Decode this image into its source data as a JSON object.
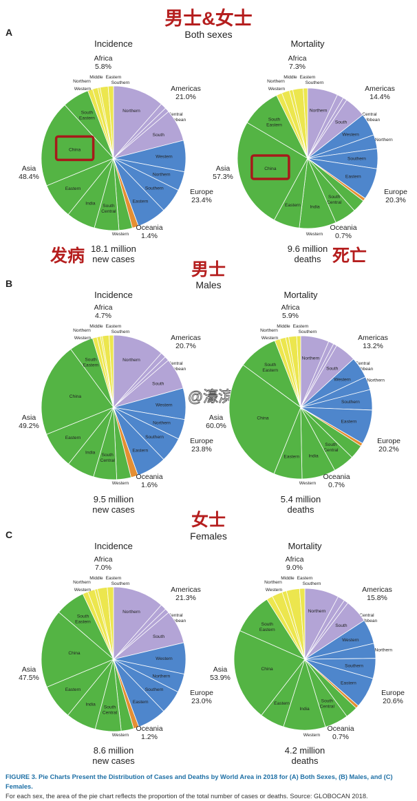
{
  "colors": {
    "africa": "#ece64e",
    "americas": "#b3a4d6",
    "europe": "#4e86cc",
    "oceania": "#e58f33",
    "asia": "#54b444",
    "heading_red": "#b51e1e",
    "china_box": "#a61a1a",
    "caption_blue": "#1d6fa5"
  },
  "headings": {
    "both": "男士&女士",
    "males": "男士",
    "females": "女士",
    "onset": "发病",
    "death": "死亡",
    "watermark": "@濠滨"
  },
  "caption": {
    "line1": "FIGURE 3. Pie Charts Present the Distribution of Cases and Deaths by World Area in 2018 for (A) Both Sexes, (B) Males, and (C) Females.",
    "line2": "For each sex, the area of the pie chart reflects the proportion of the total number of cases or deaths. Source: GLOBOCAN 2018."
  },
  "chart_data": [
    {
      "type": "pie",
      "panel": "A",
      "group": "Both sexes",
      "title": "Incidence",
      "total": "18.1 million",
      "total_unit": "new cases",
      "regions": [
        {
          "name": "Americas",
          "value": 21.0,
          "label": "21.0%"
        },
        {
          "name": "Europe",
          "value": 23.4,
          "label": "23.4%"
        },
        {
          "name": "Oceania",
          "value": 1.4,
          "label": "1.4%"
        },
        {
          "name": "Asia",
          "value": 48.4,
          "label": "48.4%"
        },
        {
          "name": "Africa",
          "value": 5.8,
          "label": "5.8%"
        }
      ],
      "subregions": [
        {
          "name": "Northern",
          "region": "Americas",
          "value": 11.5
        },
        {
          "name": "Central",
          "region": "Americas",
          "value": 1.3
        },
        {
          "name": "Caribbean",
          "region": "Americas",
          "value": 1.0
        },
        {
          "name": "South",
          "region": "Americas",
          "value": 7.2
        },
        {
          "name": "Western",
          "region": "Europe",
          "value": 7.0
        },
        {
          "name": "Northern",
          "region": "Europe",
          "value": 4.3
        },
        {
          "name": "Southern",
          "region": "Europe",
          "value": 5.5
        },
        {
          "name": "Eastern",
          "region": "Europe",
          "value": 6.6
        },
        {
          "name": "Oceania",
          "region": "Oceania",
          "value": 1.4
        },
        {
          "name": "Western",
          "region": "Asia",
          "value": 3.0
        },
        {
          "name": "South Central",
          "region": "Asia",
          "value": 5.5
        },
        {
          "name": "India",
          "region": "Asia",
          "value": 6.5
        },
        {
          "name": "Eastern",
          "region": "Asia",
          "value": 8.0
        },
        {
          "name": "China",
          "region": "Asia",
          "value": 19.4
        },
        {
          "name": "South Eastern",
          "region": "Asia",
          "value": 6.0
        },
        {
          "name": "Northern",
          "region": "Africa",
          "value": 1.1
        },
        {
          "name": "Western",
          "region": "Africa",
          "value": 1.2
        },
        {
          "name": "Middle",
          "region": "Africa",
          "value": 0.5
        },
        {
          "name": "Eastern",
          "region": "Africa",
          "value": 1.8
        },
        {
          "name": "Southern",
          "region": "Africa",
          "value": 1.2
        }
      ]
    },
    {
      "type": "pie",
      "panel": "A",
      "group": "Both sexes",
      "title": "Mortality",
      "total": "9.6 million",
      "total_unit": "deaths",
      "regions": [
        {
          "name": "Americas",
          "value": 14.4,
          "label": "14.4%"
        },
        {
          "name": "Europe",
          "value": 20.3,
          "label": "20.3%"
        },
        {
          "name": "Oceania",
          "value": 0.7,
          "label": "0.7%"
        },
        {
          "name": "Asia",
          "value": 57.3,
          "label": "57.3%"
        },
        {
          "name": "Africa",
          "value": 7.3,
          "label": "7.3%"
        }
      ],
      "subregions": [
        {
          "name": "Northern",
          "region": "Americas",
          "value": 7.0
        },
        {
          "name": "Central",
          "region": "Americas",
          "value": 1.5
        },
        {
          "name": "Caribbean",
          "region": "Americas",
          "value": 0.9
        },
        {
          "name": "South",
          "region": "Americas",
          "value": 5.0
        },
        {
          "name": "Western",
          "region": "Europe",
          "value": 5.2
        },
        {
          "name": "Northern",
          "region": "Europe",
          "value": 3.2
        },
        {
          "name": "Southern",
          "region": "Europe",
          "value": 4.6
        },
        {
          "name": "Eastern",
          "region": "Europe",
          "value": 7.3
        },
        {
          "name": "Oceania",
          "region": "Oceania",
          "value": 0.7
        },
        {
          "name": "Western",
          "region": "Asia",
          "value": 3.0
        },
        {
          "name": "South Central",
          "region": "Asia",
          "value": 5.0
        },
        {
          "name": "India",
          "region": "Asia",
          "value": 8.5
        },
        {
          "name": "Eastern",
          "region": "Asia",
          "value": 6.0
        },
        {
          "name": "China",
          "region": "Asia",
          "value": 25.6
        },
        {
          "name": "South Eastern",
          "region": "Asia",
          "value": 9.2
        },
        {
          "name": "Northern",
          "region": "Africa",
          "value": 1.3
        },
        {
          "name": "Western",
          "region": "Africa",
          "value": 1.8
        },
        {
          "name": "Middle",
          "region": "Africa",
          "value": 0.8
        },
        {
          "name": "Eastern",
          "region": "Africa",
          "value": 2.4
        },
        {
          "name": "Southern",
          "region": "Africa",
          "value": 1.0
        }
      ]
    },
    {
      "type": "pie",
      "panel": "B",
      "group": "Males",
      "title": "Incidence",
      "total": "9.5 million",
      "total_unit": "new cases",
      "regions": [
        {
          "name": "Americas",
          "value": 20.7,
          "label": "20.7%"
        },
        {
          "name": "Europe",
          "value": 23.8,
          "label": "23.8%"
        },
        {
          "name": "Oceania",
          "value": 1.6,
          "label": "1.6%"
        },
        {
          "name": "Asia",
          "value": 49.2,
          "label": "49.2%"
        },
        {
          "name": "Africa",
          "value": 4.7,
          "label": "4.7%"
        }
      ],
      "subregions": [
        {
          "name": "Northern",
          "region": "Americas",
          "value": 11.5
        },
        {
          "name": "Central",
          "region": "Americas",
          "value": 1.2
        },
        {
          "name": "Caribbean",
          "region": "Americas",
          "value": 1.0
        },
        {
          "name": "South",
          "region": "Americas",
          "value": 7.0
        },
        {
          "name": "Western",
          "region": "Europe",
          "value": 7.0
        },
        {
          "name": "Northern",
          "region": "Europe",
          "value": 4.5
        },
        {
          "name": "Southern",
          "region": "Europe",
          "value": 5.6
        },
        {
          "name": "Eastern",
          "region": "Europe",
          "value": 6.7
        },
        {
          "name": "Oceania",
          "region": "Oceania",
          "value": 1.6
        },
        {
          "name": "Western",
          "region": "Asia",
          "value": 3.2
        },
        {
          "name": "South Central",
          "region": "Asia",
          "value": 5.2
        },
        {
          "name": "India",
          "region": "Asia",
          "value": 6.2
        },
        {
          "name": "Eastern",
          "region": "Asia",
          "value": 8.2
        },
        {
          "name": "China",
          "region": "Asia",
          "value": 21.0
        },
        {
          "name": "South Eastern",
          "region": "Asia",
          "value": 5.4
        },
        {
          "name": "Northern",
          "region": "Africa",
          "value": 1.0
        },
        {
          "name": "Western",
          "region": "Africa",
          "value": 0.8
        },
        {
          "name": "Middle",
          "region": "Africa",
          "value": 0.4
        },
        {
          "name": "Eastern",
          "region": "Africa",
          "value": 1.5
        },
        {
          "name": "Southern",
          "region": "Africa",
          "value": 1.0
        }
      ]
    },
    {
      "type": "pie",
      "panel": "B",
      "group": "Males",
      "title": "Mortality",
      "total": "5.4 million",
      "total_unit": "deaths",
      "regions": [
        {
          "name": "Americas",
          "value": 13.2,
          "label": "13.2%"
        },
        {
          "name": "Europe",
          "value": 20.2,
          "label": "20.2%"
        },
        {
          "name": "Oceania",
          "value": 0.7,
          "label": "0.7%"
        },
        {
          "name": "Asia",
          "value": 60.0,
          "label": "60.0%"
        },
        {
          "name": "Africa",
          "value": 5.9,
          "label": "5.9%"
        }
      ],
      "subregions": [
        {
          "name": "Northern",
          "region": "Americas",
          "value": 6.4
        },
        {
          "name": "Central",
          "region": "Americas",
          "value": 1.2
        },
        {
          "name": "Caribbean",
          "region": "Americas",
          "value": 0.8
        },
        {
          "name": "South",
          "region": "Americas",
          "value": 4.8
        },
        {
          "name": "Western",
          "region": "Europe",
          "value": 4.8
        },
        {
          "name": "Northern",
          "region": "Europe",
          "value": 3.0
        },
        {
          "name": "Southern",
          "region": "Europe",
          "value": 4.6
        },
        {
          "name": "Eastern",
          "region": "Europe",
          "value": 7.8
        },
        {
          "name": "Oceania",
          "region": "Oceania",
          "value": 0.7
        },
        {
          "name": "Western",
          "region": "Asia",
          "value": 3.2
        },
        {
          "name": "South Central",
          "region": "Asia",
          "value": 4.8
        },
        {
          "name": "India",
          "region": "Asia",
          "value": 7.6
        },
        {
          "name": "Eastern",
          "region": "Asia",
          "value": 6.4
        },
        {
          "name": "China",
          "region": "Asia",
          "value": 29.0
        },
        {
          "name": "South Eastern",
          "region": "Asia",
          "value": 9.0
        },
        {
          "name": "Northern",
          "region": "Africa",
          "value": 1.2
        },
        {
          "name": "Western",
          "region": "Africa",
          "value": 1.3
        },
        {
          "name": "Middle",
          "region": "Africa",
          "value": 0.7
        },
        {
          "name": "Eastern",
          "region": "Africa",
          "value": 1.8
        },
        {
          "name": "Southern",
          "region": "Africa",
          "value": 0.9
        }
      ]
    },
    {
      "type": "pie",
      "panel": "C",
      "group": "Females",
      "title": "Incidence",
      "total": "8.6 million",
      "total_unit": "new cases",
      "regions": [
        {
          "name": "Americas",
          "value": 21.3,
          "label": "21.3%"
        },
        {
          "name": "Europe",
          "value": 23.0,
          "label": "23.0%"
        },
        {
          "name": "Oceania",
          "value": 1.2,
          "label": "1.2%"
        },
        {
          "name": "Asia",
          "value": 47.5,
          "label": "47.5%"
        },
        {
          "name": "Africa",
          "value": 7.0,
          "label": "7.0%"
        }
      ],
      "subregions": [
        {
          "name": "Northern",
          "region": "Americas",
          "value": 11.5
        },
        {
          "name": "Central",
          "region": "Americas",
          "value": 1.3
        },
        {
          "name": "Caribbean",
          "region": "Americas",
          "value": 1.0
        },
        {
          "name": "South",
          "region": "Americas",
          "value": 7.5
        },
        {
          "name": "Western",
          "region": "Europe",
          "value": 7.0
        },
        {
          "name": "Northern",
          "region": "Europe",
          "value": 4.2
        },
        {
          "name": "Southern",
          "region": "Europe",
          "value": 5.3
        },
        {
          "name": "Eastern",
          "region": "Europe",
          "value": 6.5
        },
        {
          "name": "Oceania",
          "region": "Oceania",
          "value": 1.2
        },
        {
          "name": "Western",
          "region": "Asia",
          "value": 2.8
        },
        {
          "name": "South Central",
          "region": "Asia",
          "value": 5.8
        },
        {
          "name": "India",
          "region": "Asia",
          "value": 6.8
        },
        {
          "name": "Eastern",
          "region": "Asia",
          "value": 7.8
        },
        {
          "name": "China",
          "region": "Asia",
          "value": 17.6
        },
        {
          "name": "South Eastern",
          "region": "Asia",
          "value": 6.7
        },
        {
          "name": "Northern",
          "region": "Africa",
          "value": 1.2
        },
        {
          "name": "Western",
          "region": "Africa",
          "value": 1.6
        },
        {
          "name": "Middle",
          "region": "Africa",
          "value": 0.6
        },
        {
          "name": "Eastern",
          "region": "Africa",
          "value": 2.2
        },
        {
          "name": "Southern",
          "region": "Africa",
          "value": 1.4
        }
      ]
    },
    {
      "type": "pie",
      "panel": "C",
      "group": "Females",
      "title": "Mortality",
      "total": "4.2 million",
      "total_unit": "deaths",
      "regions": [
        {
          "name": "Americas",
          "value": 15.8,
          "label": "15.8%"
        },
        {
          "name": "Europe",
          "value": 20.6,
          "label": "20.6%"
        },
        {
          "name": "Oceania",
          "value": 0.7,
          "label": "0.7%"
        },
        {
          "name": "Asia",
          "value": 53.9,
          "label": "53.9%"
        },
        {
          "name": "Africa",
          "value": 9.0,
          "label": "9.0%"
        }
      ],
      "subregions": [
        {
          "name": "Northern",
          "region": "Americas",
          "value": 7.8
        },
        {
          "name": "Central",
          "region": "Americas",
          "value": 1.6
        },
        {
          "name": "Caribbean",
          "region": "Americas",
          "value": 1.0
        },
        {
          "name": "South",
          "region": "Americas",
          "value": 5.4
        },
        {
          "name": "Western",
          "region": "Europe",
          "value": 5.6
        },
        {
          "name": "Northern",
          "region": "Europe",
          "value": 3.4
        },
        {
          "name": "Southern",
          "region": "Europe",
          "value": 4.6
        },
        {
          "name": "Eastern",
          "region": "Europe",
          "value": 7.0
        },
        {
          "name": "Oceania",
          "region": "Oceania",
          "value": 0.7
        },
        {
          "name": "Western",
          "region": "Asia",
          "value": 2.8
        },
        {
          "name": "South Central",
          "region": "Asia",
          "value": 5.4
        },
        {
          "name": "India",
          "region": "Asia",
          "value": 9.6
        },
        {
          "name": "Eastern",
          "region": "Asia",
          "value": 5.6
        },
        {
          "name": "China",
          "region": "Asia",
          "value": 21.1
        },
        {
          "name": "South Eastern",
          "region": "Asia",
          "value": 9.4
        },
        {
          "name": "Northern",
          "region": "Africa",
          "value": 1.4
        },
        {
          "name": "Western",
          "region": "Africa",
          "value": 2.4
        },
        {
          "name": "Middle",
          "region": "Africa",
          "value": 1.0
        },
        {
          "name": "Eastern",
          "region": "Africa",
          "value": 3.0
        },
        {
          "name": "Southern",
          "region": "Africa",
          "value": 1.2
        }
      ]
    }
  ]
}
